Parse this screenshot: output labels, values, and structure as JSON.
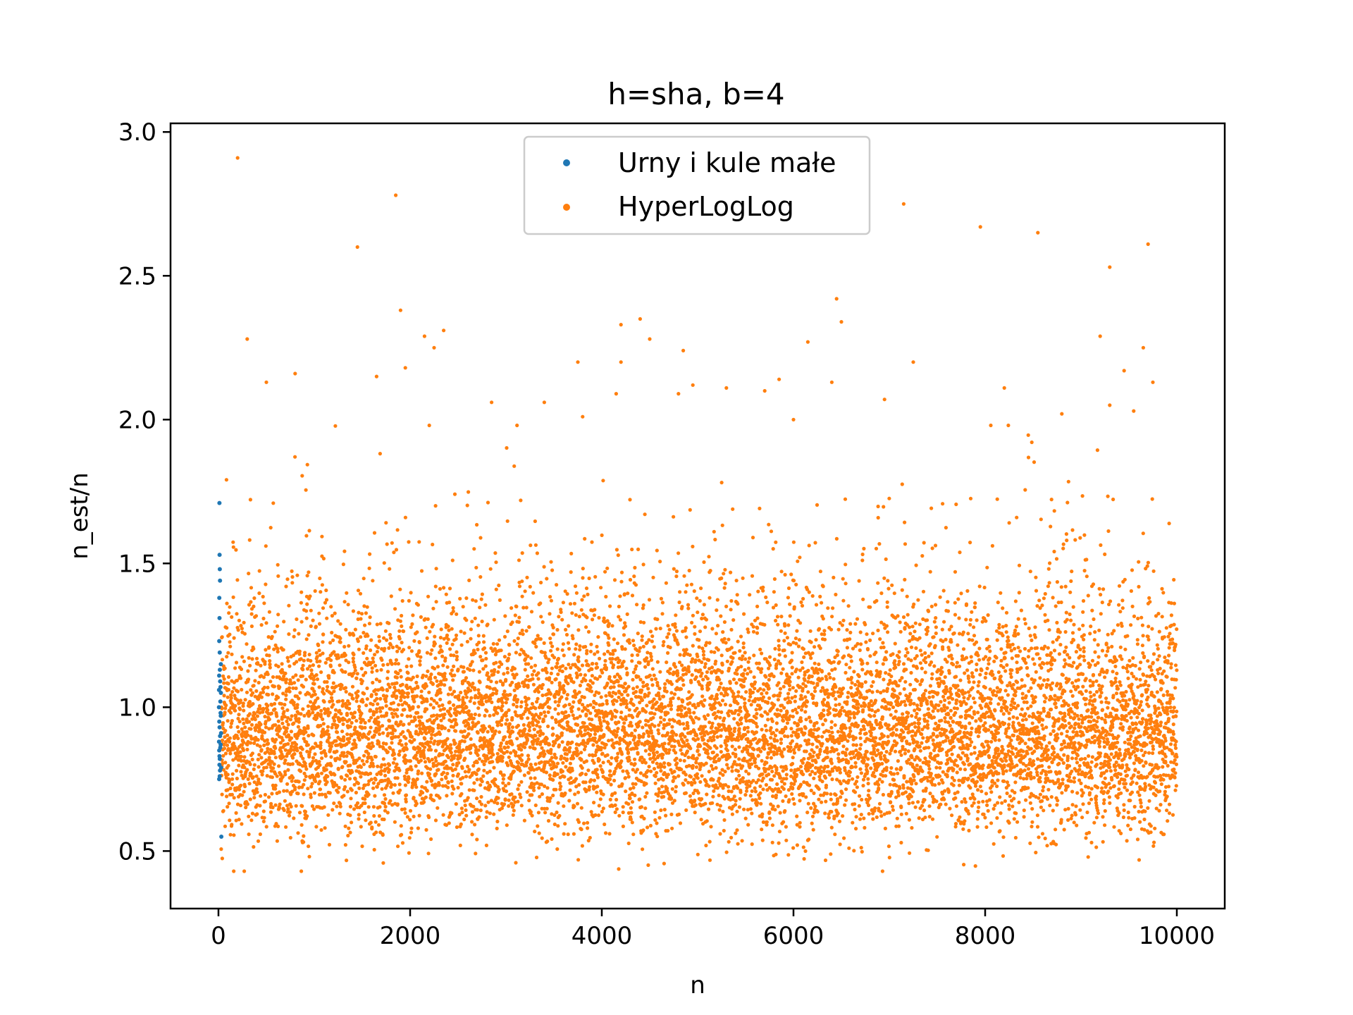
{
  "chart_data": {
    "type": "scatter",
    "title": "h=sha, b=4",
    "xlabel": "n",
    "ylabel": "n_est/n",
    "xlim": [
      -500,
      10500
    ],
    "ylim": [
      0.3,
      3.03
    ],
    "x_ticks": [
      0,
      2000,
      4000,
      6000,
      8000,
      10000
    ],
    "x_tick_labels": [
      "0",
      "2000",
      "4000",
      "6000",
      "8000",
      "10000"
    ],
    "y_ticks": [
      0.5,
      1.0,
      1.5,
      2.0,
      2.5,
      3.0
    ],
    "y_tick_labels": [
      "0.5",
      "1.0",
      "1.5",
      "2.0",
      "2.5",
      "3.0"
    ],
    "grid": false,
    "legend_position": "upper-center",
    "series": [
      {
        "name": "Urny i kule małe",
        "color": "#1f77b4",
        "x_range": [
          1,
          30
        ],
        "points": [
          [
            10,
            1.71
          ],
          [
            12,
            1.53
          ],
          [
            14,
            1.48
          ],
          [
            16,
            1.44
          ],
          [
            9,
            1.38
          ],
          [
            11,
            1.31
          ],
          [
            8,
            1.23
          ],
          [
            13,
            1.19
          ],
          [
            15,
            1.13
          ],
          [
            7,
            1.11
          ],
          [
            18,
            1.09
          ],
          [
            6,
            1.06
          ],
          [
            20,
            1.02
          ],
          [
            5,
            1.0
          ],
          [
            22,
            0.98
          ],
          [
            9,
            0.95
          ],
          [
            12,
            0.93
          ],
          [
            17,
            0.9
          ],
          [
            6,
            0.88
          ],
          [
            19,
            0.86
          ],
          [
            8,
            0.85
          ],
          [
            11,
            0.83
          ],
          [
            14,
            0.82
          ],
          [
            10,
            0.8
          ],
          [
            16,
            0.78
          ],
          [
            13,
            0.76
          ],
          [
            7,
            0.75
          ],
          [
            24,
            0.97
          ],
          [
            26,
            1.05
          ],
          [
            27,
            0.91
          ],
          [
            25,
            1.15
          ],
          [
            23,
            0.87
          ],
          [
            21,
            1.07
          ],
          [
            28,
            0.79
          ],
          [
            30,
            0.55
          ]
        ]
      },
      {
        "name": "HyperLogLog",
        "color": "#ff7f0e",
        "x_range": [
          30,
          10000
        ],
        "point_count": 9970,
        "center": 0.93,
        "spread": 0.22,
        "outliers": [
          [
            200,
            2.91
          ],
          [
            1850,
            2.78
          ],
          [
            7150,
            2.75
          ],
          [
            7950,
            2.67
          ],
          [
            8550,
            2.65
          ],
          [
            9700,
            2.61
          ],
          [
            1450,
            2.6
          ],
          [
            9300,
            2.53
          ],
          [
            6450,
            2.42
          ],
          [
            1900,
            2.38
          ],
          [
            6500,
            2.34
          ],
          [
            4400,
            2.35
          ],
          [
            4200,
            2.33
          ],
          [
            2350,
            2.31
          ],
          [
            300,
            2.28
          ],
          [
            2150,
            2.29
          ],
          [
            9200,
            2.29
          ],
          [
            4500,
            2.28
          ],
          [
            6150,
            2.27
          ],
          [
            2250,
            2.25
          ],
          [
            4850,
            2.24
          ],
          [
            9650,
            2.25
          ],
          [
            7250,
            2.2
          ],
          [
            3750,
            2.2
          ],
          [
            4200,
            2.2
          ],
          [
            1950,
            2.18
          ],
          [
            800,
            2.16
          ],
          [
            9450,
            2.17
          ],
          [
            1650,
            2.15
          ],
          [
            5850,
            2.14
          ],
          [
            500,
            2.13
          ],
          [
            6400,
            2.13
          ],
          [
            4950,
            2.12
          ],
          [
            9750,
            2.13
          ],
          [
            5300,
            2.11
          ],
          [
            8200,
            2.11
          ],
          [
            5700,
            2.1
          ],
          [
            4800,
            2.09
          ],
          [
            4150,
            2.09
          ],
          [
            3400,
            2.06
          ],
          [
            2850,
            2.06
          ],
          [
            6950,
            2.07
          ],
          [
            9300,
            2.05
          ],
          [
            8800,
            2.02
          ],
          [
            3800,
            2.01
          ],
          [
            9550,
            2.03
          ],
          [
            6000,
            2.0
          ]
        ]
      }
    ]
  }
}
